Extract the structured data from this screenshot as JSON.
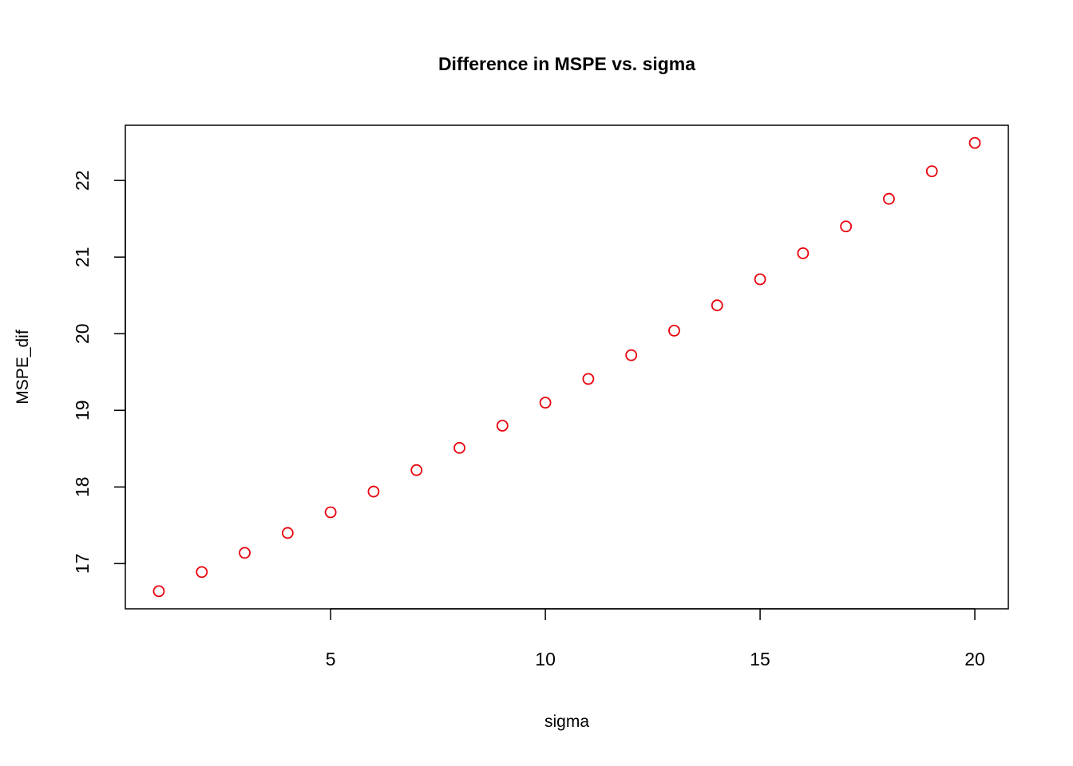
{
  "chart_data": {
    "type": "scatter",
    "title": "Difference in MSPE vs. sigma",
    "xlabel": "sigma",
    "ylabel": "MSPE_dif",
    "xlim": [
      0.22,
      20.78
    ],
    "ylim": [
      16.41,
      22.72
    ],
    "x_ticks": [
      5,
      10,
      15,
      20
    ],
    "y_ticks": [
      17,
      18,
      19,
      20,
      21,
      22
    ],
    "x_tick_labels": [
      "5",
      "10",
      "15",
      "20"
    ],
    "y_tick_labels": [
      "17",
      "18",
      "19",
      "20",
      "21",
      "22"
    ],
    "grid": false,
    "legend": "none",
    "marker": "open-circle",
    "point_color": "#e8000b",
    "series": [
      {
        "x": [
          1,
          2,
          3,
          4,
          5,
          6,
          7,
          8,
          9,
          10,
          11,
          12,
          13,
          14,
          15,
          16,
          17,
          18,
          19,
          20
        ],
        "values": [
          16.64,
          16.89,
          17.14,
          17.4,
          17.67,
          17.94,
          18.22,
          18.51,
          18.8,
          19.1,
          19.41,
          19.72,
          20.04,
          20.37,
          20.71,
          21.05,
          21.4,
          21.76,
          22.12,
          22.49
        ]
      }
    ]
  }
}
